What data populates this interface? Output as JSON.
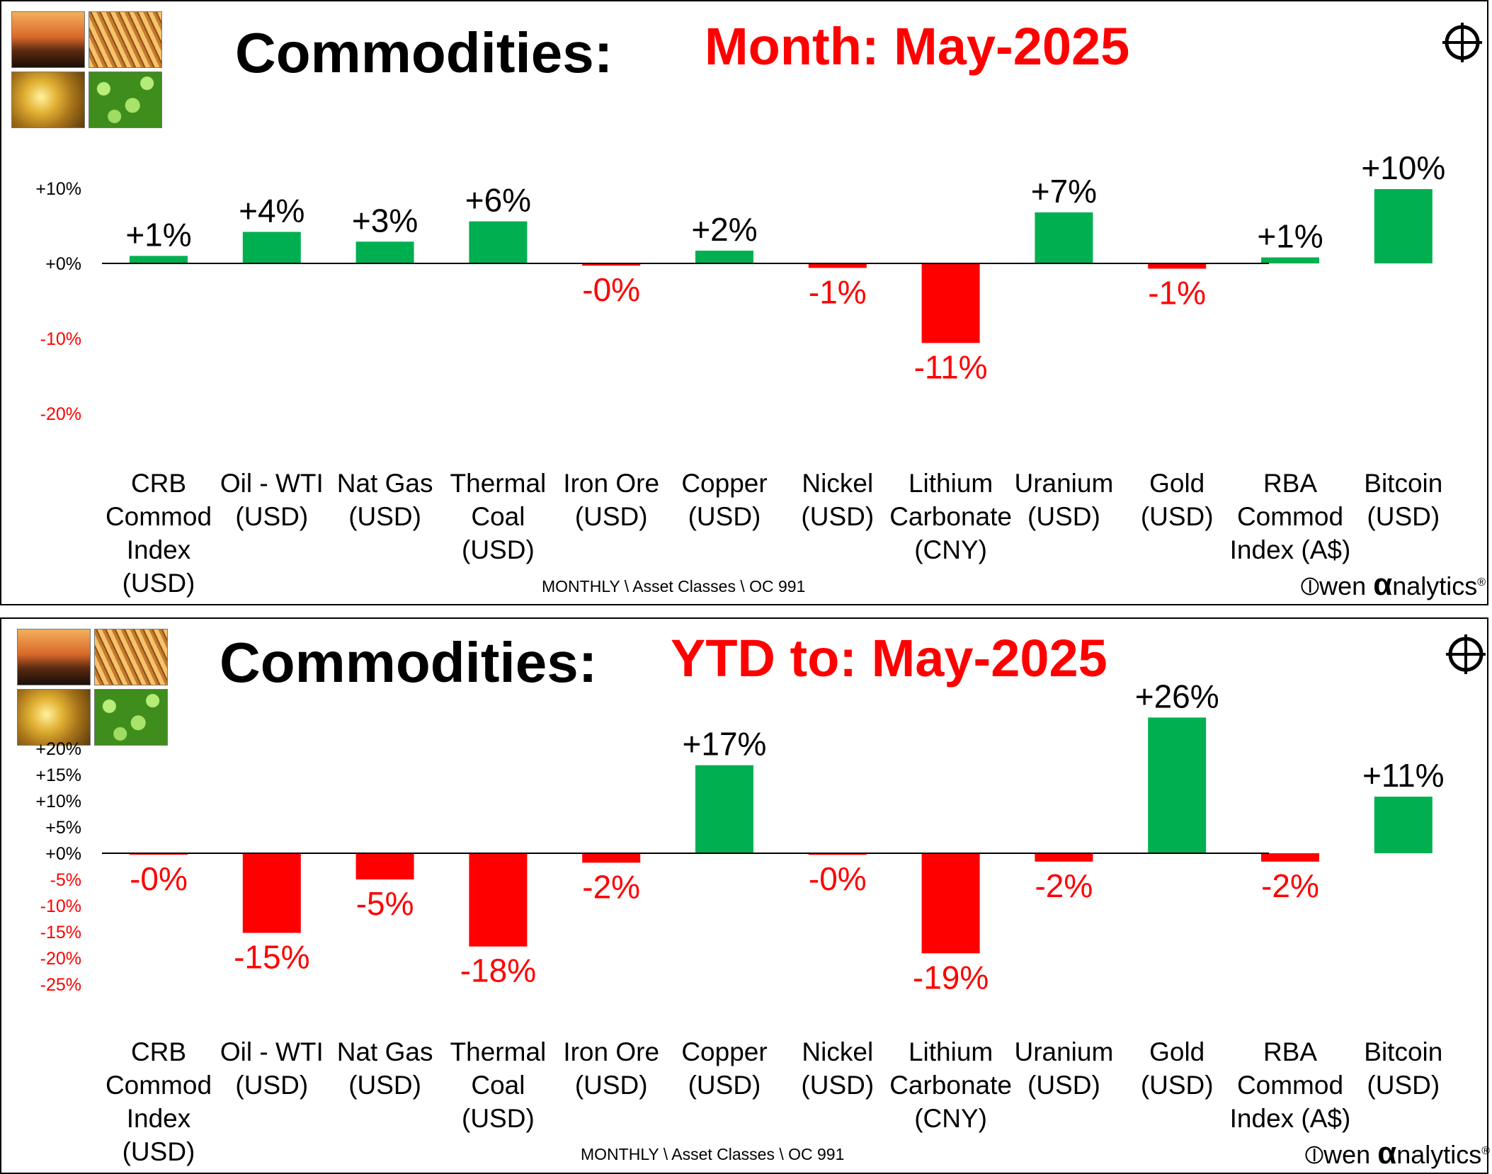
{
  "panels": {
    "month": {
      "title": "Commodities:",
      "period": "Month:  May-2025",
      "footer": "MONTHLY \\ Asset Classes \\ OC 991",
      "brand": {
        "prefix": "wen ",
        "alpha": "α",
        "suffix": "nalytics",
        "reg": "®"
      }
    },
    "ytd": {
      "title": "Commodities:",
      "period": "YTD to:  May-2025",
      "footer": "MONTHLY \\ Asset Classes \\ OC 991",
      "brand": {
        "prefix": "wen ",
        "alpha": "α",
        "suffix": "nalytics",
        "reg": "®"
      }
    }
  },
  "colors": {
    "positive": "#00b050",
    "negative": "#ff0000",
    "positive_label": "#000000",
    "negative_label": "#ff0000"
  },
  "icons": [
    "oil-rig-photo",
    "wheat-photo",
    "gold-bars-photo",
    "soybeans-photo",
    "crosshair-icon"
  ],
  "chart_data": [
    {
      "type": "bar",
      "title": "Commodities:  Month:  May-2025",
      "categories": [
        [
          "CRB",
          "Commod",
          "Index",
          "(USD)"
        ],
        [
          "Oil - WTI",
          "(USD)"
        ],
        [
          "Nat Gas",
          "(USD)"
        ],
        [
          "Thermal",
          "Coal",
          "(USD)"
        ],
        [
          "Iron Ore",
          "(USD)"
        ],
        [
          "Copper",
          "(USD)"
        ],
        [
          "Nickel",
          "(USD)"
        ],
        [
          "Lithium",
          "Carbonate",
          "(CNY)"
        ],
        [
          "Uranium",
          "(USD)"
        ],
        [
          "Gold",
          "(USD)"
        ],
        [
          "RBA",
          "Commod",
          "Index (A$)"
        ],
        [
          "Bitcoin",
          "(USD)"
        ]
      ],
      "values": [
        1.0,
        4.2,
        2.9,
        5.6,
        -0.3,
        1.7,
        -0.6,
        -10.6,
        6.8,
        -0.7,
        0.8,
        9.9
      ],
      "data_labels": [
        "+1%",
        "+4%",
        "+3%",
        "+6%",
        "-0%",
        "+2%",
        "-1%",
        "-11%",
        "+7%",
        "-1%",
        "+1%",
        "+10%"
      ],
      "y_ticks": [
        10,
        0,
        -10,
        -20
      ],
      "y_tick_labels": [
        "+10%",
        "+0%",
        "-10%",
        "-20%"
      ],
      "ylim": [
        -20,
        10
      ],
      "grid": false,
      "legend": "none"
    },
    {
      "type": "bar",
      "title": "Commodities:  YTD to:  May-2025",
      "categories": [
        [
          "CRB",
          "Commod",
          "Index",
          "(USD)"
        ],
        [
          "Oil - WTI",
          "(USD)"
        ],
        [
          "Nat Gas",
          "(USD)"
        ],
        [
          "Thermal",
          "Coal",
          "(USD)"
        ],
        [
          "Iron Ore",
          "(USD)"
        ],
        [
          "Copper",
          "(USD)"
        ],
        [
          "Nickel",
          "(USD)"
        ],
        [
          "Lithium",
          "Carbonate",
          "(CNY)"
        ],
        [
          "Uranium",
          "(USD)"
        ],
        [
          "Gold",
          "(USD)"
        ],
        [
          "RBA",
          "Commod",
          "Index (A$)"
        ],
        [
          "Bitcoin",
          "(USD)"
        ]
      ],
      "values": [
        -0.2,
        -15.2,
        -5.0,
        -17.8,
        -1.8,
        16.8,
        -0.3,
        -19.1,
        -1.6,
        25.9,
        -1.6,
        10.8
      ],
      "data_labels": [
        "-0%",
        "-15%",
        "-5%",
        "-18%",
        "-2%",
        "+17%",
        "-0%",
        "-19%",
        "-2%",
        "+26%",
        "-2%",
        "+11%"
      ],
      "y_ticks": [
        20,
        15,
        10,
        5,
        0,
        -5,
        -10,
        -15,
        -20,
        -25
      ],
      "y_tick_labels": [
        "+20%",
        "+15%",
        "+10%",
        "+5%",
        "+0%",
        "-5%",
        "-10%",
        "-15%",
        "-20%",
        "-25%"
      ],
      "ylim": [
        -25,
        20
      ],
      "grid": false,
      "legend": "none"
    }
  ]
}
